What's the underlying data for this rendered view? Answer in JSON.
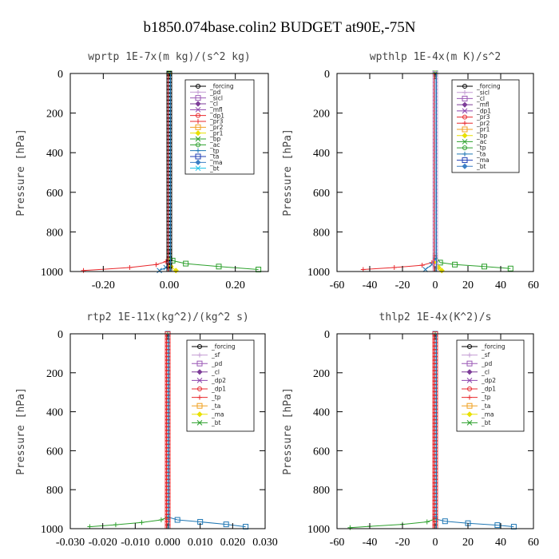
{
  "figure_title": "b1850.074base.colin2  BUDGET at90E,-75N",
  "chart_data": [
    {
      "type": "line",
      "title": "wprtp   1E-7x(m kg)/(s^2 kg)",
      "ylabel": "Pressure [hPa]",
      "xlim": [
        -0.3,
        0.3
      ],
      "ylim": [
        1000,
        0
      ],
      "x_ticks": [
        "-0.20",
        "0.00",
        "0.20"
      ],
      "x_tick_values": [
        -0.2,
        0.0,
        0.2
      ],
      "y_ticks": [
        "0",
        "200",
        "400",
        "600",
        "800",
        "1000"
      ],
      "y_tick_values": [
        0,
        200,
        400,
        600,
        800,
        1000
      ],
      "legend": [
        "_forcing",
        "_pd",
        "_sicl",
        "_cl",
        "_mfl",
        "_dp1",
        "_pr3",
        "_pr2",
        "_pr1",
        "_bp",
        "_ac",
        "_tp",
        "_ta",
        "_ma",
        "_bt"
      ],
      "series": [
        {
          "name": "_forcing",
          "color": "#000000",
          "x": [
            0,
            0,
            0,
            0,
            0,
            0
          ],
          "y": [
            0,
            200,
            400,
            600,
            800,
            1000
          ]
        },
        {
          "name": "_dp1",
          "color": "#e8282c",
          "x": [
            0,
            0,
            -0.01,
            -0.04,
            -0.12,
            -0.26
          ],
          "y": [
            0,
            900,
            950,
            965,
            980,
            995
          ]
        },
        {
          "name": "_ac",
          "color": "#2ca02c",
          "x": [
            0,
            0,
            0.01,
            0.05,
            0.15,
            0.27
          ],
          "y": [
            0,
            900,
            945,
            960,
            975,
            990
          ]
        },
        {
          "name": "_pr1",
          "color": "#e8e000",
          "x": [
            0,
            0,
            0.005,
            0.02
          ],
          "y": [
            0,
            940,
            975,
            995
          ]
        },
        {
          "name": "_tp",
          "color": "#1f77b4",
          "x": [
            0,
            0,
            -0.01,
            -0.03
          ],
          "y": [
            0,
            950,
            980,
            995
          ]
        }
      ]
    },
    {
      "type": "line",
      "title": "wpthlp   1E-4x(m K)/s^2",
      "ylabel": "Pressure [hPa]",
      "xlim": [
        -60,
        60
      ],
      "ylim": [
        1000,
        0
      ],
      "x_ticks": [
        "-60",
        "-40",
        "-20",
        "0",
        "20",
        "40",
        "60"
      ],
      "x_tick_values": [
        -60,
        -40,
        -20,
        0,
        20,
        40,
        60
      ],
      "y_ticks": [
        "0",
        "200",
        "400",
        "600",
        "800",
        "1000"
      ],
      "y_tick_values": [
        0,
        200,
        400,
        600,
        800,
        1000
      ],
      "legend": [
        "_forcing",
        "_sicl",
        "_cl",
        "_mfl",
        "_dp1",
        "_pr3",
        "_pr2",
        "_pr1",
        "_bp",
        "_ac",
        "_tp",
        "_ta",
        "_ma",
        "_bt"
      ],
      "series": [
        {
          "name": "_forcing",
          "color": "#c39bd3",
          "x": [
            0,
            0,
            0,
            0,
            0,
            0
          ],
          "y": [
            0,
            200,
            400,
            600,
            800,
            1000
          ]
        },
        {
          "name": "_dp1",
          "color": "#e8282c",
          "x": [
            0,
            0,
            -2,
            -8,
            -25,
            -44
          ],
          "y": [
            0,
            920,
            955,
            968,
            980,
            990
          ]
        },
        {
          "name": "_ac",
          "color": "#2ca02c",
          "x": [
            0,
            0,
            3,
            12,
            30,
            46
          ],
          "y": [
            0,
            920,
            955,
            965,
            975,
            985
          ]
        },
        {
          "name": "_pr1",
          "color": "#e8e000",
          "x": [
            0,
            0,
            2,
            4
          ],
          "y": [
            0,
            950,
            980,
            995
          ]
        },
        {
          "name": "_tp",
          "color": "#1f77b4",
          "x": [
            0,
            0,
            -2,
            -6
          ],
          "y": [
            0,
            940,
            965,
            990
          ]
        }
      ]
    },
    {
      "type": "line",
      "title": "rtp2   1E-11x(kg^2)/(kg^2 s)",
      "ylabel": "Pressure [hPa]",
      "xlim": [
        -0.03,
        0.03
      ],
      "ylim": [
        1000,
        0
      ],
      "x_ticks": [
        "-0.030",
        "-0.020",
        "-0.010",
        "0.000",
        "0.010",
        "0.020",
        "0.030"
      ],
      "x_tick_values": [
        -0.03,
        -0.02,
        -0.01,
        0.0,
        0.01,
        0.02,
        0.03
      ],
      "y_ticks": [
        "0",
        "200",
        "400",
        "600",
        "800",
        "1000"
      ],
      "y_tick_values": [
        0,
        200,
        400,
        600,
        800,
        1000
      ],
      "legend": [
        "_forcing",
        "_sf",
        "_pd",
        "_cl",
        "_dp2",
        "_dp1",
        "_tp",
        "_ta",
        "_ma",
        "_bt"
      ],
      "series": [
        {
          "name": "_forcing",
          "color": "#e8282c",
          "x": [
            0,
            0,
            0,
            0,
            0,
            0
          ],
          "y": [
            0,
            200,
            400,
            600,
            800,
            1000
          ]
        },
        {
          "name": "_dp1",
          "color": "#2ca02c",
          "x": [
            0,
            0,
            -0.002,
            -0.008,
            -0.016,
            -0.024
          ],
          "y": [
            0,
            940,
            955,
            968,
            980,
            990
          ]
        },
        {
          "name": "_tp",
          "color": "#1f77b4",
          "x": [
            0,
            0,
            0.003,
            0.01,
            0.018,
            0.024
          ],
          "y": [
            0,
            940,
            955,
            965,
            978,
            990
          ]
        }
      ]
    },
    {
      "type": "line",
      "title": "thlp2   1E-4x(K^2)/s",
      "ylabel": "Pressure [hPa]",
      "xlim": [
        -60,
        60
      ],
      "ylim": [
        1000,
        0
      ],
      "x_ticks": [
        "-60",
        "-40",
        "-20",
        "0",
        "20",
        "40",
        "60"
      ],
      "x_tick_values": [
        -60,
        -40,
        -20,
        0,
        20,
        40,
        60
      ],
      "y_ticks": [
        "0",
        "200",
        "400",
        "600",
        "800",
        "1000"
      ],
      "y_tick_values": [
        0,
        200,
        400,
        600,
        800,
        1000
      ],
      "legend": [
        "_forcing",
        "_sf",
        "_pd",
        "_cl",
        "_dp2",
        "_dp1",
        "_tp",
        "_ta",
        "_ma",
        "_bt"
      ],
      "series": [
        {
          "name": "_forcing",
          "color": "#e8282c",
          "x": [
            0,
            0,
            0,
            0,
            0,
            0
          ],
          "y": [
            0,
            200,
            400,
            600,
            800,
            1000
          ]
        },
        {
          "name": "_dp1",
          "color": "#2ca02c",
          "x": [
            0,
            0,
            -5,
            -20,
            -40,
            -52
          ],
          "y": [
            0,
            950,
            965,
            978,
            988,
            995
          ]
        },
        {
          "name": "_tp",
          "color": "#1f77b4",
          "x": [
            0,
            0,
            6,
            20,
            38,
            48
          ],
          "y": [
            0,
            950,
            962,
            972,
            982,
            990
          ]
        }
      ]
    }
  ],
  "legend_colors": [
    "#000000",
    "#c39bd3",
    "#9b59b6",
    "#7d3c98",
    "#8e44ad",
    "#e8282c",
    "#e8282c",
    "#f0a020",
    "#e8e000",
    "#2ca02c",
    "#2ca02c",
    "#1f77b4",
    "#1f3fb4",
    "#3b7fc4",
    "#17c1e8"
  ]
}
